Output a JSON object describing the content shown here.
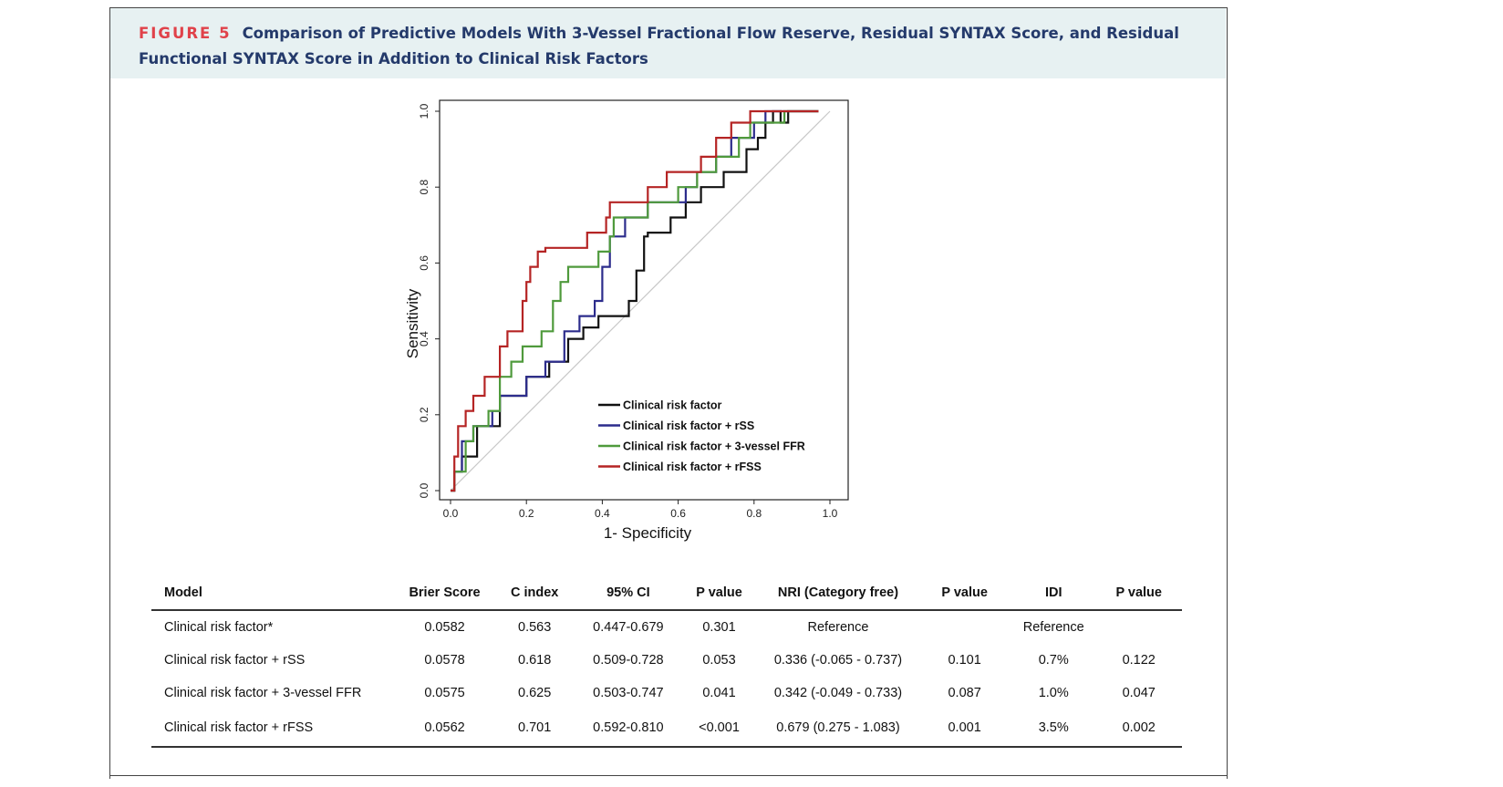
{
  "figure": {
    "label": "FIGURE 5",
    "title": "Comparison of Predictive Models With 3-Vessel Fractional Flow Reserve, Residual SYNTAX Score, and Residual Functional SYNTAX Score in Addition to Clinical Risk Factors"
  },
  "chart_data": {
    "type": "line",
    "xlabel": "1- Specificity",
    "ylabel": "Sensitivity",
    "xlim": [
      0,
      1
    ],
    "ylim": [
      0,
      1
    ],
    "x_ticks": [
      "0.0",
      "0.2",
      "0.4",
      "0.6",
      "0.8",
      "1.0"
    ],
    "y_ticks": [
      "0.0",
      "0.2",
      "0.4",
      "0.6",
      "0.8",
      "1.0"
    ],
    "grid": false,
    "legend_position": "bottom-right",
    "reference_line": {
      "x": [
        0,
        1
      ],
      "y": [
        0,
        1
      ],
      "color": "#c8c8c8"
    },
    "series": [
      {
        "name": "Clinical risk factor",
        "color": "#111111",
        "x": [
          0.0,
          0.01,
          0.01,
          0.03,
          0.03,
          0.07,
          0.07,
          0.13,
          0.13,
          0.2,
          0.2,
          0.26,
          0.26,
          0.31,
          0.31,
          0.35,
          0.35,
          0.39,
          0.39,
          0.47,
          0.47,
          0.49,
          0.49,
          0.51,
          0.51,
          0.52,
          0.52,
          0.58,
          0.58,
          0.62,
          0.62,
          0.66,
          0.66,
          0.72,
          0.72,
          0.78,
          0.78,
          0.81,
          0.81,
          0.83,
          0.83,
          0.85,
          0.85,
          0.87,
          0.87,
          0.89,
          0.89,
          0.97
        ],
        "y": [
          0.0,
          0.0,
          0.05,
          0.05,
          0.09,
          0.09,
          0.17,
          0.17,
          0.25,
          0.25,
          0.3,
          0.3,
          0.34,
          0.34,
          0.4,
          0.4,
          0.43,
          0.43,
          0.46,
          0.46,
          0.5,
          0.5,
          0.58,
          0.58,
          0.67,
          0.67,
          0.68,
          0.68,
          0.72,
          0.72,
          0.76,
          0.76,
          0.8,
          0.8,
          0.84,
          0.84,
          0.9,
          0.9,
          0.93,
          0.93,
          0.97,
          0.97,
          1.0,
          1.0,
          0.97,
          0.97,
          1.0,
          1.0
        ]
      },
      {
        "name": "Clinical risk factor + rSS",
        "color": "#2c2c8c",
        "x": [
          0.0,
          0.01,
          0.01,
          0.03,
          0.03,
          0.06,
          0.06,
          0.11,
          0.11,
          0.13,
          0.13,
          0.2,
          0.2,
          0.25,
          0.25,
          0.3,
          0.3,
          0.34,
          0.34,
          0.38,
          0.38,
          0.4,
          0.4,
          0.42,
          0.42,
          0.46,
          0.46,
          0.52,
          0.52,
          0.62,
          0.62,
          0.65,
          0.65,
          0.7,
          0.7,
          0.74,
          0.74,
          0.8,
          0.8,
          0.83,
          0.83,
          0.9,
          0.9,
          0.97
        ],
        "y": [
          0.0,
          0.0,
          0.05,
          0.05,
          0.13,
          0.13,
          0.17,
          0.17,
          0.21,
          0.21,
          0.25,
          0.25,
          0.3,
          0.3,
          0.34,
          0.34,
          0.42,
          0.42,
          0.46,
          0.46,
          0.5,
          0.5,
          0.59,
          0.59,
          0.67,
          0.67,
          0.72,
          0.72,
          0.76,
          0.76,
          0.8,
          0.8,
          0.84,
          0.84,
          0.88,
          0.88,
          0.93,
          0.93,
          0.97,
          0.97,
          1.0,
          1.0,
          1.0,
          1.0
        ]
      },
      {
        "name": "Clinical risk factor + 3-vessel FFR",
        "color": "#4f9a3c",
        "x": [
          0.0,
          0.01,
          0.01,
          0.04,
          0.04,
          0.06,
          0.06,
          0.1,
          0.1,
          0.13,
          0.13,
          0.16,
          0.16,
          0.19,
          0.19,
          0.24,
          0.24,
          0.27,
          0.27,
          0.29,
          0.29,
          0.31,
          0.31,
          0.39,
          0.39,
          0.42,
          0.42,
          0.43,
          0.43,
          0.52,
          0.52,
          0.6,
          0.6,
          0.65,
          0.65,
          0.7,
          0.7,
          0.76,
          0.76,
          0.79,
          0.79,
          0.82,
          0.82,
          0.88,
          0.88,
          0.92,
          0.92,
          0.97
        ],
        "y": [
          0.0,
          0.0,
          0.05,
          0.05,
          0.13,
          0.13,
          0.17,
          0.17,
          0.21,
          0.21,
          0.3,
          0.3,
          0.34,
          0.34,
          0.38,
          0.38,
          0.42,
          0.42,
          0.5,
          0.5,
          0.55,
          0.55,
          0.59,
          0.59,
          0.63,
          0.63,
          0.67,
          0.67,
          0.72,
          0.72,
          0.76,
          0.76,
          0.8,
          0.8,
          0.84,
          0.84,
          0.88,
          0.88,
          0.93,
          0.93,
          0.97,
          0.97,
          0.97,
          0.97,
          1.0,
          1.0,
          1.0,
          1.0
        ]
      },
      {
        "name": "Clinical risk factor + rFSS",
        "color": "#b52424",
        "x": [
          0.0,
          0.01,
          0.01,
          0.02,
          0.02,
          0.04,
          0.04,
          0.06,
          0.06,
          0.09,
          0.09,
          0.13,
          0.13,
          0.15,
          0.15,
          0.19,
          0.19,
          0.2,
          0.2,
          0.21,
          0.21,
          0.23,
          0.23,
          0.25,
          0.25,
          0.36,
          0.36,
          0.41,
          0.41,
          0.42,
          0.42,
          0.52,
          0.52,
          0.57,
          0.57,
          0.66,
          0.66,
          0.7,
          0.7,
          0.74,
          0.74,
          0.79,
          0.79,
          0.82,
          0.82,
          0.97
        ],
        "y": [
          0.0,
          0.0,
          0.09,
          0.09,
          0.17,
          0.17,
          0.21,
          0.21,
          0.25,
          0.25,
          0.3,
          0.3,
          0.38,
          0.38,
          0.42,
          0.42,
          0.5,
          0.5,
          0.55,
          0.55,
          0.59,
          0.59,
          0.63,
          0.63,
          0.64,
          0.64,
          0.68,
          0.68,
          0.72,
          0.72,
          0.76,
          0.76,
          0.8,
          0.8,
          0.84,
          0.84,
          0.88,
          0.88,
          0.93,
          0.93,
          0.97,
          0.97,
          1.0,
          1.0,
          1.0,
          1.0
        ]
      }
    ]
  },
  "table": {
    "headers": [
      "Model",
      "Brier Score",
      "C index",
      "95% CI",
      "P value",
      "NRI (Category free)",
      "P value",
      "IDI",
      "P value"
    ],
    "rows": [
      [
        "Clinical risk factor*",
        "0.0582",
        "0.563",
        "0.447-0.679",
        "0.301",
        "Reference",
        "",
        "Reference",
        ""
      ],
      [
        "Clinical risk factor + rSS",
        "0.0578",
        "0.618",
        "0.509-0.728",
        "0.053",
        "0.336 (-0.065 - 0.737)",
        "0.101",
        "0.7%",
        "0.122"
      ],
      [
        "Clinical risk factor + 3-vessel FFR",
        "0.0575",
        "0.625",
        "0.503-0.747",
        "0.041",
        "0.342 (-0.049 - 0.733)",
        "0.087",
        "1.0%",
        "0.047"
      ],
      [
        "Clinical risk factor + rFSS",
        "0.0562",
        "0.701",
        "0.592-0.810",
        "<0.001",
        "0.679 (0.275 - 1.083)",
        "0.001",
        "3.5%",
        "0.002"
      ]
    ]
  }
}
